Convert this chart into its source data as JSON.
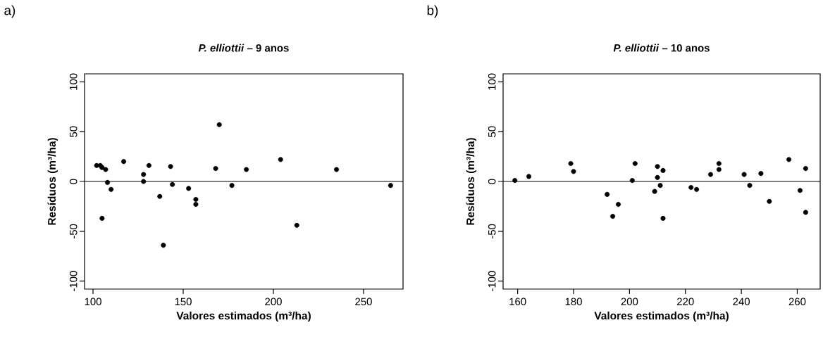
{
  "chart_data": [
    {
      "type": "scatter",
      "title": "*P. elliottii* – 9 anos",
      "xlabel": "Valores estimados (m³/ha)",
      "ylabel": "Resíduos (m³/ha)",
      "annotations": [
        "a)"
      ],
      "x": [
        102,
        104,
        105,
        107,
        108,
        110,
        105,
        117,
        128,
        128,
        131,
        137,
        139,
        143,
        144,
        153,
        157,
        157,
        170,
        168,
        177,
        185,
        204,
        213,
        235,
        265
      ],
      "values": [
        16,
        16,
        14,
        12,
        -1,
        -8,
        -37,
        20,
        7,
        0,
        16,
        -15,
        -64,
        15,
        -3,
        -7,
        -18,
        -23,
        57,
        13,
        -4,
        12,
        22,
        -44,
        12,
        -4
      ],
      "color": "#000000",
      "xlim": [
        95.3,
        271.9
      ],
      "ylim": [
        -108,
        108
      ],
      "xticks": [
        100,
        150,
        200,
        250
      ],
      "yticks": [
        -100,
        -50,
        0,
        50,
        100
      ],
      "ref_lines": [
        {
          "axis": "y",
          "value": 0,
          "color": "#000000"
        }
      ]
    },
    {
      "type": "scatter",
      "title": "*P. elliottii* – 10 anos",
      "xlabel": "Valores estimados (m³/ha)",
      "ylabel": "Resíduos (m³/ha)",
      "annotations": [
        "b)"
      ],
      "x": [
        159,
        164,
        179,
        180,
        192,
        194,
        196,
        201,
        202,
        210,
        210,
        212,
        211,
        209,
        212,
        222,
        224,
        229,
        232,
        232,
        241,
        243,
        247,
        250,
        257,
        263,
        261,
        263
      ],
      "values": [
        1,
        5,
        18,
        10,
        -13,
        -35,
        -23,
        1,
        18,
        15,
        4,
        11,
        -4,
        -10,
        -37,
        -6,
        -8,
        7,
        18,
        12,
        7,
        -4,
        8,
        -20,
        22,
        13,
        -9,
        -31
      ],
      "color": "#000000",
      "xlim": [
        154.8,
        268.2
      ],
      "ylim": [
        -108,
        108
      ],
      "xticks": [
        160,
        180,
        200,
        220,
        240,
        260
      ],
      "yticks": [
        -100,
        -50,
        0,
        50,
        100
      ],
      "ref_lines": [
        {
          "axis": "y",
          "value": 0,
          "color": "#000000"
        }
      ]
    }
  ]
}
